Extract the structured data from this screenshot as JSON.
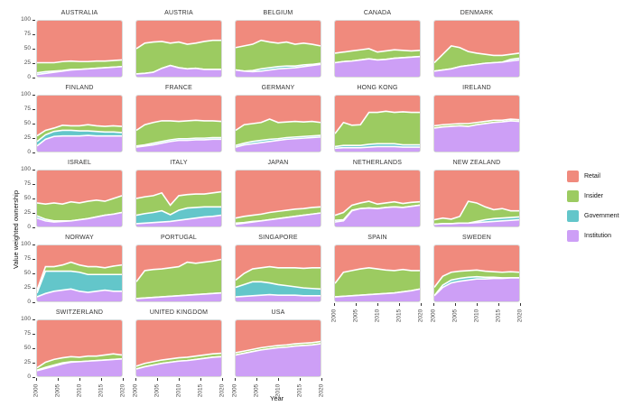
{
  "figure": {
    "ylabel": "Value weighted ownership",
    "xlabel": "Year",
    "y_ticks": [
      0,
      25,
      50,
      75,
      100
    ],
    "x_ticks": [
      2000,
      2005,
      2010,
      2015,
      2020
    ]
  },
  "legend": {
    "entries": [
      {
        "label": "Retail",
        "color": "#F08A7D"
      },
      {
        "label": "Insider",
        "color": "#9CCB61"
      },
      {
        "label": "Government",
        "color": "#63C6CA"
      },
      {
        "label": "Institution",
        "color": "#CD9FF6"
      }
    ]
  },
  "chart_data": {
    "type": "area",
    "stacked": true,
    "title": "",
    "xlabel": "Year",
    "ylabel": "Value weighted ownership",
    "ylim": [
      0,
      100
    ],
    "xlim": [
      2000,
      2020
    ],
    "stack_order_bottom_to_top": [
      "Institution",
      "Government",
      "Insider",
      "Retail"
    ],
    "x": [
      2000,
      2002,
      2004,
      2006,
      2008,
      2010,
      2012,
      2014,
      2016,
      2018,
      2020
    ],
    "facets": [
      {
        "country": "AUSTRALIA",
        "institution": [
          4,
          6,
          8,
          10,
          12,
          13,
          14,
          15,
          16,
          17,
          18
        ],
        "government": [
          3,
          3,
          2,
          1,
          1,
          0,
          0,
          0,
          0,
          0,
          0
        ],
        "insider": [
          18,
          16,
          15,
          16,
          15,
          14,
          13,
          13,
          12,
          12,
          12
        ],
        "retail": [
          75,
          75,
          75,
          73,
          72,
          73,
          73,
          72,
          72,
          71,
          70
        ]
      },
      {
        "country": "AUSTRIA",
        "institution": [
          5,
          6,
          8,
          15,
          20,
          16,
          14,
          15,
          13,
          13,
          13
        ],
        "government": [
          0,
          0,
          0,
          0,
          0,
          0,
          0,
          0,
          0,
          0,
          0
        ],
        "insider": [
          45,
          54,
          54,
          48,
          40,
          46,
          44,
          45,
          50,
          52,
          52
        ],
        "retail": [
          50,
          40,
          38,
          37,
          40,
          38,
          42,
          40,
          37,
          35,
          35
        ]
      },
      {
        "country": "BELGIUM",
        "institution": [
          12,
          10,
          9,
          10,
          12,
          14,
          15,
          16,
          18,
          20,
          22
        ],
        "government": [
          0,
          0,
          2,
          4,
          4,
          4,
          4,
          3,
          3,
          2,
          2
        ],
        "insider": [
          40,
          45,
          47,
          51,
          46,
          42,
          43,
          39,
          39,
          36,
          31
        ],
        "retail": [
          48,
          45,
          42,
          35,
          38,
          40,
          38,
          42,
          40,
          42,
          45
        ]
      },
      {
        "country": "CANADA",
        "institution": [
          25,
          27,
          28,
          30,
          32,
          30,
          31,
          33,
          34,
          35,
          36
        ],
        "government": [
          0,
          0,
          0,
          0,
          0,
          0,
          0,
          0,
          0,
          0,
          0
        ],
        "insider": [
          17,
          17,
          18,
          18,
          18,
          14,
          15,
          15,
          13,
          11,
          11
        ],
        "retail": [
          58,
          56,
          54,
          52,
          50,
          56,
          54,
          52,
          53,
          54,
          53
        ]
      },
      {
        "country": "DENMARK",
        "institution": [
          10,
          12,
          14,
          18,
          20,
          22,
          24,
          25,
          26,
          28,
          30
        ],
        "government": [
          0,
          0,
          0,
          0,
          0,
          0,
          0,
          0,
          0,
          3,
          3
        ],
        "insider": [
          15,
          28,
          41,
          34,
          25,
          20,
          16,
          13,
          12,
          9,
          9
        ],
        "retail": [
          75,
          60,
          45,
          48,
          55,
          58,
          60,
          62,
          62,
          60,
          58
        ]
      },
      {
        "country": "FINLAND",
        "institution": [
          10,
          22,
          27,
          28,
          28,
          28,
          29,
          28,
          28,
          28,
          28
        ],
        "government": [
          8,
          8,
          9,
          10,
          10,
          9,
          8,
          8,
          7,
          7,
          6
        ],
        "insider": [
          10,
          8,
          6,
          9,
          8,
          9,
          11,
          10,
          10,
          11,
          11
        ],
        "retail": [
          72,
          62,
          58,
          53,
          54,
          54,
          52,
          54,
          55,
          54,
          55
        ]
      },
      {
        "country": "FRANCE",
        "institution": [
          8,
          10,
          12,
          15,
          18,
          20,
          20,
          21,
          21,
          22,
          22
        ],
        "government": [
          2,
          2,
          3,
          3,
          3,
          3,
          3,
          3,
          3,
          3,
          3
        ],
        "insider": [
          28,
          36,
          37,
          37,
          34,
          31,
          32,
          32,
          31,
          30,
          29
        ],
        "retail": [
          62,
          52,
          48,
          45,
          45,
          46,
          45,
          44,
          45,
          45,
          46
        ]
      },
      {
        "country": "GERMANY",
        "institution": [
          8,
          12,
          14,
          16,
          18,
          20,
          22,
          23,
          24,
          25,
          26
        ],
        "government": [
          3,
          3,
          4,
          4,
          4,
          3,
          3,
          3,
          3,
          3,
          3
        ],
        "insider": [
          27,
          33,
          32,
          32,
          36,
          29,
          28,
          28,
          26,
          26,
          23
        ],
        "retail": [
          62,
          52,
          50,
          48,
          42,
          48,
          47,
          46,
          47,
          46,
          48
        ]
      },
      {
        "country": "HONG KONG",
        "institution": [
          6,
          7,
          7,
          7,
          8,
          9,
          9,
          9,
          8,
          8,
          8
        ],
        "government": [
          3,
          4,
          4,
          4,
          5,
          5,
          5,
          5,
          4,
          4,
          4
        ],
        "insider": [
          23,
          41,
          36,
          37,
          57,
          56,
          58,
          56,
          59,
          58,
          58
        ],
        "retail": [
          68,
          48,
          53,
          52,
          30,
          30,
          28,
          30,
          29,
          30,
          30
        ]
      },
      {
        "country": "IRELAND",
        "institution": [
          42,
          44,
          45,
          46,
          45,
          48,
          50,
          52,
          53,
          55,
          54
        ],
        "government": [
          0,
          0,
          0,
          0,
          0,
          0,
          0,
          0,
          0,
          0,
          0
        ],
        "insider": [
          4,
          4,
          4,
          4,
          5,
          4,
          4,
          4,
          3,
          3,
          3
        ],
        "retail": [
          54,
          52,
          51,
          50,
          50,
          48,
          46,
          44,
          44,
          42,
          43
        ]
      },
      {
        "country": "ISRAEL",
        "institution": [
          15,
          10,
          8,
          9,
          10,
          12,
          14,
          17,
          20,
          22,
          25
        ],
        "government": [
          4,
          3,
          2,
          1,
          0,
          0,
          0,
          0,
          0,
          0,
          0
        ],
        "insider": [
          23,
          27,
          32,
          30,
          34,
          30,
          31,
          30,
          25,
          28,
          30
        ],
        "retail": [
          58,
          60,
          58,
          60,
          56,
          58,
          55,
          53,
          55,
          50,
          45
        ]
      },
      {
        "country": "ITALY",
        "institution": [
          5,
          6,
          7,
          8,
          9,
          11,
          13,
          15,
          17,
          18,
          20
        ],
        "government": [
          15,
          17,
          18,
          20,
          12,
          18,
          20,
          19,
          18,
          17,
          15
        ],
        "insider": [
          30,
          30,
          30,
          32,
          17,
          26,
          24,
          24,
          23,
          25,
          27
        ],
        "retail": [
          50,
          47,
          45,
          40,
          62,
          45,
          43,
          42,
          42,
          40,
          38
        ]
      },
      {
        "country": "JAPAN",
        "institution": [
          4,
          6,
          8,
          10,
          12,
          14,
          16,
          18,
          20,
          22,
          24
        ],
        "government": [
          2,
          1,
          1,
          0,
          0,
          0,
          0,
          0,
          0,
          0,
          0
        ],
        "insider": [
          9,
          11,
          11,
          12,
          13,
          13,
          13,
          13,
          12,
          12,
          11
        ],
        "retail": [
          85,
          82,
          80,
          78,
          75,
          73,
          71,
          69,
          68,
          66,
          65
        ]
      },
      {
        "country": "NETHERLANDS",
        "institution": [
          8,
          10,
          28,
          32,
          33,
          32,
          34,
          35,
          34,
          36,
          38
        ],
        "government": [
          3,
          2,
          1,
          0,
          0,
          0,
          0,
          0,
          0,
          0,
          0
        ],
        "insider": [
          9,
          13,
          9,
          10,
          12,
          8,
          8,
          9,
          7,
          7,
          6
        ],
        "retail": [
          80,
          75,
          62,
          58,
          55,
          60,
          58,
          56,
          59,
          57,
          56
        ]
      },
      {
        "country": "NEW ZEALAND",
        "institution": [
          4,
          5,
          5,
          6,
          6,
          7,
          8,
          9,
          10,
          11,
          12
        ],
        "government": [
          0,
          0,
          0,
          0,
          0,
          2,
          4,
          5,
          5,
          5,
          5
        ],
        "insider": [
          8,
          10,
          8,
          12,
          39,
          33,
          23,
          16,
          17,
          12,
          11
        ],
        "retail": [
          88,
          85,
          87,
          82,
          55,
          58,
          65,
          70,
          68,
          72,
          72
        ]
      },
      {
        "country": "NORWAY",
        "institution": [
          8,
          14,
          18,
          20,
          22,
          18,
          16,
          18,
          20,
          18,
          18
        ],
        "government": [
          7,
          40,
          36,
          34,
          32,
          34,
          32,
          30,
          28,
          30,
          30
        ],
        "insider": [
          5,
          8,
          8,
          11,
          16,
          13,
          14,
          14,
          12,
          15,
          17
        ],
        "retail": [
          80,
          38,
          38,
          35,
          30,
          35,
          38,
          38,
          40,
          37,
          35
        ]
      },
      {
        "country": "PORTUGAL",
        "institution": [
          5,
          6,
          7,
          8,
          9,
          10,
          11,
          12,
          13,
          14,
          15
        ],
        "government": [
          0,
          0,
          0,
          0,
          0,
          0,
          0,
          0,
          0,
          0,
          0
        ],
        "insider": [
          30,
          49,
          50,
          50,
          51,
          52,
          59,
          56,
          57,
          58,
          60
        ],
        "retail": [
          65,
          45,
          43,
          42,
          40,
          38,
          30,
          32,
          30,
          28,
          25
        ]
      },
      {
        "country": "SINGAPORE",
        "institution": [
          8,
          9,
          10,
          11,
          12,
          11,
          11,
          11,
          10,
          10,
          10
        ],
        "government": [
          17,
          21,
          25,
          24,
          21,
          19,
          17,
          15,
          14,
          13,
          12
        ],
        "insider": [
          13,
          20,
          23,
          25,
          29,
          30,
          32,
          34,
          35,
          37,
          38
        ],
        "retail": [
          62,
          50,
          42,
          40,
          38,
          40,
          40,
          40,
          41,
          40,
          40
        ]
      },
      {
        "country": "SPAIN",
        "institution": [
          8,
          9,
          10,
          11,
          12,
          13,
          14,
          15,
          17,
          19,
          22
        ],
        "government": [
          0,
          0,
          0,
          0,
          0,
          0,
          0,
          0,
          0,
          0,
          0
        ],
        "insider": [
          24,
          43,
          45,
          47,
          48,
          45,
          42,
          40,
          40,
          36,
          33
        ],
        "retail": [
          68,
          48,
          45,
          42,
          40,
          42,
          44,
          45,
          43,
          45,
          45
        ]
      },
      {
        "country": "SWEDEN",
        "institution": [
          10,
          25,
          33,
          36,
          38,
          40,
          40,
          41,
          41,
          42,
          42
        ],
        "government": [
          0,
          4,
          5,
          5,
          5,
          4,
          3,
          2,
          1,
          0,
          0
        ],
        "insider": [
          15,
          16,
          14,
          13,
          12,
          12,
          11,
          10,
          10,
          11,
          10
        ],
        "retail": [
          75,
          55,
          48,
          46,
          45,
          44,
          46,
          47,
          48,
          47,
          48
        ]
      },
      {
        "country": "SWITZERLAND",
        "institution": [
          10,
          14,
          18,
          22,
          25,
          26,
          27,
          28,
          29,
          30,
          31
        ],
        "government": [
          1,
          2,
          2,
          2,
          1,
          0,
          0,
          0,
          0,
          0,
          0
        ],
        "insider": [
          4,
          9,
          10,
          9,
          9,
          8,
          9,
          8,
          9,
          10,
          7
        ],
        "retail": [
          85,
          75,
          70,
          67,
          65,
          66,
          64,
          64,
          62,
          60,
          62
        ]
      },
      {
        "country": "UNITED KINGDOM",
        "institution": [
          13,
          17,
          20,
          23,
          25,
          27,
          28,
          30,
          32,
          34,
          35
        ],
        "government": [
          0,
          0,
          0,
          0,
          0,
          0,
          0,
          0,
          0,
          0,
          0
        ],
        "insider": [
          5,
          6,
          6,
          6,
          6,
          6,
          6,
          6,
          6,
          6,
          6
        ],
        "retail": [
          82,
          77,
          74,
          71,
          69,
          67,
          66,
          64,
          62,
          60,
          59
        ]
      },
      {
        "country": "USA",
        "institution": [
          38,
          41,
          44,
          47,
          49,
          51,
          52,
          54,
          55,
          56,
          58
        ],
        "government": [
          0,
          0,
          0,
          0,
          0,
          0,
          0,
          0,
          0,
          0,
          0
        ],
        "insider": [
          4,
          4,
          4,
          4,
          4,
          4,
          4,
          4,
          4,
          4,
          4
        ],
        "retail": [
          58,
          55,
          52,
          49,
          47,
          45,
          44,
          42,
          41,
          40,
          38
        ]
      }
    ],
    "facets_with_x_axis": [
      "SPAIN",
      "SWEDEN",
      "SWITZERLAND",
      "UNITED KINGDOM",
      "USA"
    ],
    "facets_with_y_axis": [
      "AUSTRALIA",
      "FINLAND",
      "ISRAEL",
      "NORWAY",
      "SWITZERLAND"
    ]
  }
}
